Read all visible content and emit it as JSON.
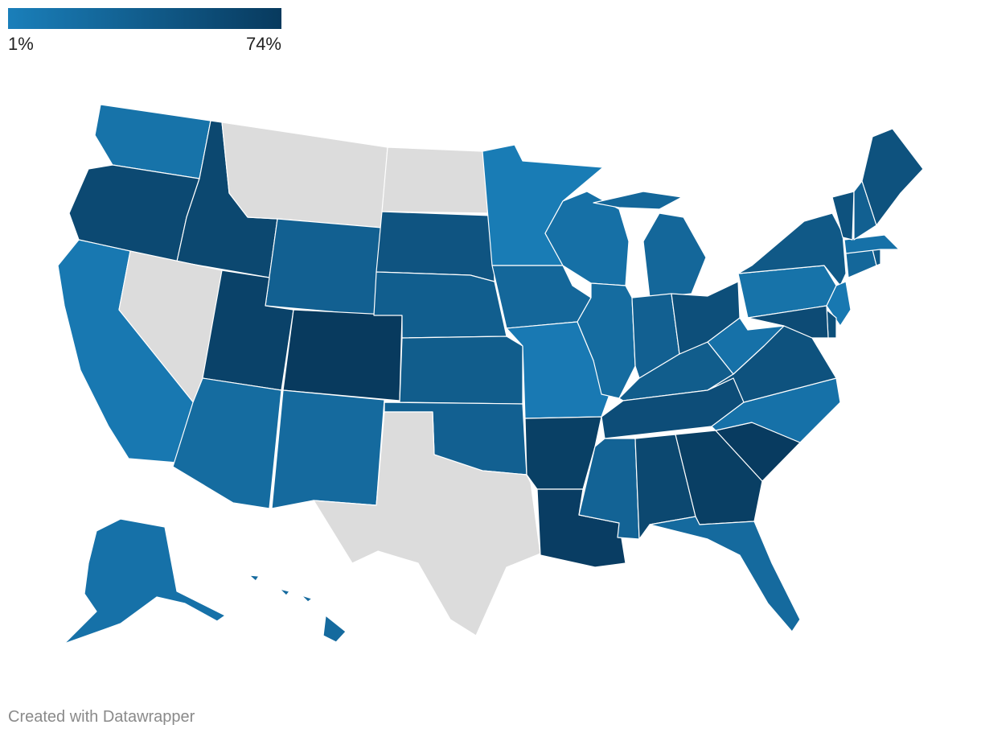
{
  "legend": {
    "min_label": "1%",
    "max_label": "74%",
    "min_value": 1,
    "max_value": 74,
    "color_low": "#1a7fba",
    "color_high": "#083a5e"
  },
  "no_data_color": "#dcdcdc",
  "credit": "Created with Datawrapper",
  "states": [
    {
      "code": "WA",
      "level": 0.18
    },
    {
      "code": "OR",
      "level": 0.78
    },
    {
      "code": "CA",
      "level": 0.1
    },
    {
      "code": "ID",
      "level": 0.8
    },
    {
      "code": "NV",
      "level": null
    },
    {
      "code": "MT",
      "level": null
    },
    {
      "code": "WY",
      "level": 0.45
    },
    {
      "code": "UT",
      "level": 0.88
    },
    {
      "code": "AZ",
      "level": 0.28
    },
    {
      "code": "CO",
      "level": 1.0
    },
    {
      "code": "NM",
      "level": 0.3
    },
    {
      "code": "ND",
      "level": null
    },
    {
      "code": "SD",
      "level": 0.62
    },
    {
      "code": "NE",
      "level": 0.48
    },
    {
      "code": "KS",
      "level": 0.5
    },
    {
      "code": "OK",
      "level": 0.45
    },
    {
      "code": "TX",
      "level": null
    },
    {
      "code": "MN",
      "level": 0.05
    },
    {
      "code": "IA",
      "level": 0.35
    },
    {
      "code": "MO",
      "level": 0.08
    },
    {
      "code": "AR",
      "level": 0.92
    },
    {
      "code": "LA",
      "level": 0.95
    },
    {
      "code": "WI",
      "level": 0.22
    },
    {
      "code": "IL",
      "level": 0.28
    },
    {
      "code": "MI",
      "level": 0.35
    },
    {
      "code": "IN",
      "level": 0.45
    },
    {
      "code": "KY",
      "level": 0.5
    },
    {
      "code": "TN",
      "level": 0.72
    },
    {
      "code": "MS",
      "level": 0.4
    },
    {
      "code": "AL",
      "level": 0.8
    },
    {
      "code": "GA",
      "level": 0.93
    },
    {
      "code": "FL",
      "level": 0.3
    },
    {
      "code": "SC",
      "level": 0.98
    },
    {
      "code": "NC",
      "level": 0.2
    },
    {
      "code": "VA",
      "level": 0.65
    },
    {
      "code": "WV",
      "level": 0.2
    },
    {
      "code": "OH",
      "level": 0.7
    },
    {
      "code": "PA",
      "level": 0.18
    },
    {
      "code": "NY",
      "level": 0.55
    },
    {
      "code": "NJ",
      "level": 0.1
    },
    {
      "code": "DE",
      "level": 0.7
    },
    {
      "code": "MD",
      "level": 0.75
    },
    {
      "code": "CT",
      "level": 0.35
    },
    {
      "code": "RI",
      "level": 0.55
    },
    {
      "code": "MA",
      "level": 0.2
    },
    {
      "code": "VT",
      "level": 0.65
    },
    {
      "code": "NH",
      "level": 0.45
    },
    {
      "code": "ME",
      "level": 0.65
    },
    {
      "code": "AK",
      "level": 0.2
    },
    {
      "code": "HI",
      "level": 0.3
    }
  ]
}
